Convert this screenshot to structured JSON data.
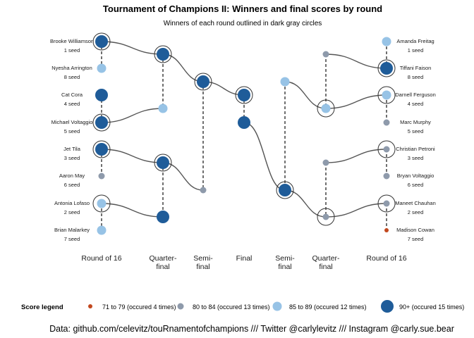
{
  "title": "Tournament of Champions II: Winners and final scores by round",
  "subtitle": "Winners of each round outlined in dark gray circles",
  "caption": "Data: github.com/celevitz/touRnamentofchampions /// Twitter @carlylevitz /// Instagram @carly.sue.bear",
  "legend": {
    "title": "Score legend",
    "items": [
      {
        "label": "71 to 79 (occured 4 times)",
        "color": "#c2481e",
        "size": "xs"
      },
      {
        "label": "80 to 84 (occured 13 times)",
        "color": "#8e9aab",
        "size": "s"
      },
      {
        "label": "85 to 89 (occured 12 times)",
        "color": "#97c3e6",
        "size": "m"
      },
      {
        "label": "90+ (occured 15 times)",
        "color": "#1f5c99",
        "size": "l"
      }
    ]
  },
  "chart_data": {
    "type": "bracket",
    "rounds": [
      {
        "key": "L16",
        "label": "Round of 16"
      },
      {
        "key": "LQF",
        "label": "Quarter-\nfinal"
      },
      {
        "key": "LSF",
        "label": "Semi-\nfinal"
      },
      {
        "key": "F",
        "label": "Final"
      },
      {
        "key": "RSF",
        "label": "Semi-\nfinal"
      },
      {
        "key": "RQF",
        "label": "Quarter-\nfinal"
      },
      {
        "key": "R16",
        "label": "Round of 16"
      }
    ],
    "players_left": [
      {
        "name": "Brooke Williamson",
        "seed": "1 seed"
      },
      {
        "name": "Nyesha Arrington",
        "seed": "8 seed"
      },
      {
        "name": "Cat Cora",
        "seed": "4 seed"
      },
      {
        "name": "Michael Voltaggio",
        "seed": "5 seed"
      },
      {
        "name": "Jet Tila",
        "seed": "3 seed"
      },
      {
        "name": "Aaron May",
        "seed": "6 seed"
      },
      {
        "name": "Antonia Lofaso",
        "seed": "2 seed"
      },
      {
        "name": "Brian Malarkey",
        "seed": "7 seed"
      }
    ],
    "players_right": [
      {
        "name": "Amanda Freitag",
        "seed": "1 seed"
      },
      {
        "name": "Tiffani Faison",
        "seed": "8 seed"
      },
      {
        "name": "Darnell Ferguson",
        "seed": "4 seed"
      },
      {
        "name": "Marc Murphy",
        "seed": "5 seed"
      },
      {
        "name": "Christian Petroni",
        "seed": "3 seed"
      },
      {
        "name": "Bryan Voltaggio",
        "seed": "6 seed"
      },
      {
        "name": "Maneet Chauhan",
        "seed": "2 seed"
      },
      {
        "name": "Madison Cowan",
        "seed": "7 seed"
      }
    ],
    "score_bins": [
      "71 to 79",
      "80 to 84",
      "85 to 89",
      "90+"
    ],
    "entries": [
      {
        "round": "L16",
        "slot": 1,
        "bin": "90+",
        "winner": true
      },
      {
        "round": "L16",
        "slot": 2,
        "bin": "85 to 89",
        "winner": false
      },
      {
        "round": "L16",
        "slot": 3,
        "bin": "90+",
        "winner": false
      },
      {
        "round": "L16",
        "slot": 4,
        "bin": "90+",
        "winner": true
      },
      {
        "round": "L16",
        "slot": 5,
        "bin": "90+",
        "winner": true
      },
      {
        "round": "L16",
        "slot": 6,
        "bin": "80 to 84",
        "winner": false
      },
      {
        "round": "L16",
        "slot": 7,
        "bin": "85 to 89",
        "winner": true
      },
      {
        "round": "L16",
        "slot": 8,
        "bin": "85 to 89",
        "winner": false
      },
      {
        "round": "LQF",
        "slot": 1,
        "bin": "90+",
        "winner": true
      },
      {
        "round": "LQF",
        "slot": 2,
        "bin": "85 to 89",
        "winner": false
      },
      {
        "round": "LQF",
        "slot": 3,
        "bin": "90+",
        "winner": true
      },
      {
        "round": "LQF",
        "slot": 4,
        "bin": "90+",
        "winner": false
      },
      {
        "round": "LSF",
        "slot": 1,
        "bin": "90+",
        "winner": true
      },
      {
        "round": "LSF",
        "slot": 2,
        "bin": "80 to 84",
        "winner": false
      },
      {
        "round": "F",
        "slot": 1,
        "bin": "90+",
        "winner": true
      },
      {
        "round": "F",
        "slot": 2,
        "bin": "90+",
        "winner": false
      },
      {
        "round": "RSF",
        "slot": 1,
        "bin": "85 to 89",
        "winner": false
      },
      {
        "round": "RSF",
        "slot": 2,
        "bin": "90+",
        "winner": true
      },
      {
        "round": "RQF",
        "slot": 1,
        "bin": "80 to 84",
        "winner": false
      },
      {
        "round": "RQF",
        "slot": 2,
        "bin": "85 to 89",
        "winner": true
      },
      {
        "round": "RQF",
        "slot": 3,
        "bin": "80 to 84",
        "winner": false
      },
      {
        "round": "RQF",
        "slot": 4,
        "bin": "80 to 84",
        "winner": true
      },
      {
        "round": "R16",
        "slot": 1,
        "bin": "85 to 89",
        "winner": false
      },
      {
        "round": "R16",
        "slot": 2,
        "bin": "90+",
        "winner": true
      },
      {
        "round": "R16",
        "slot": 3,
        "bin": "85 to 89",
        "winner": true
      },
      {
        "round": "R16",
        "slot": 4,
        "bin": "80 to 84",
        "winner": false
      },
      {
        "round": "R16",
        "slot": 5,
        "bin": "80 to 84",
        "winner": true
      },
      {
        "round": "R16",
        "slot": 6,
        "bin": "80 to 84",
        "winner": false
      },
      {
        "round": "R16",
        "slot": 7,
        "bin": "80 to 84",
        "winner": true
      },
      {
        "round": "R16",
        "slot": 8,
        "bin": "71 to 79",
        "winner": false
      }
    ]
  }
}
